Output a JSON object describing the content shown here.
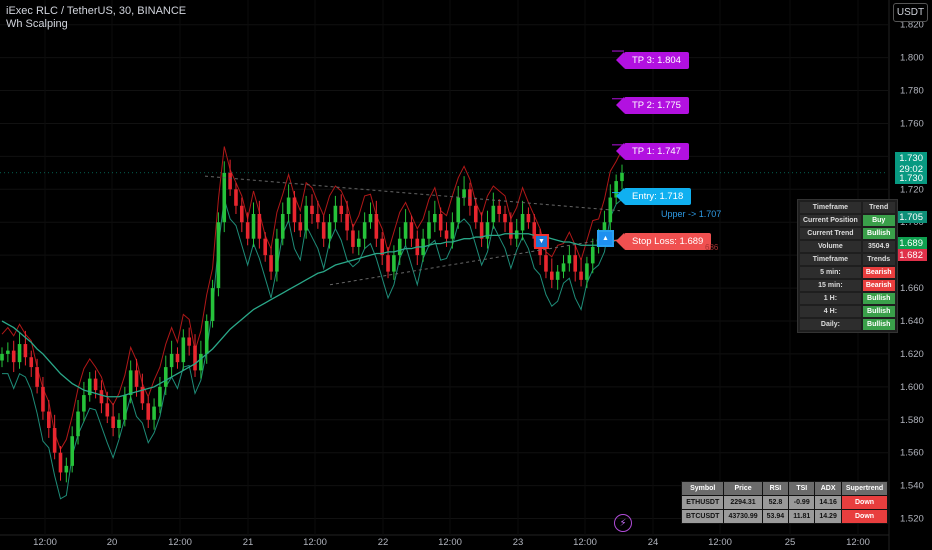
{
  "header": {
    "symbol_line": "iExec RLC / TetherUS, 30, BINANCE",
    "indicator_name": "Wh Scalping"
  },
  "currency_button": "USDT",
  "price_axis": {
    "min": 1.51,
    "max": 1.835,
    "ticks": [
      "1.820",
      "1.800",
      "1.780",
      "1.760",
      "1.740",
      "1.720",
      "1.700",
      "1.680",
      "1.660",
      "1.640",
      "1.620",
      "1.600",
      "1.580",
      "1.560",
      "1.540",
      "1.520"
    ],
    "tick_values": [
      1.82,
      1.8,
      1.78,
      1.76,
      1.74,
      1.72,
      1.7,
      1.68,
      1.66,
      1.64,
      1.62,
      1.6,
      1.58,
      1.56,
      1.54,
      1.52
    ]
  },
  "time_axis": {
    "labels": [
      "12:00",
      "20",
      "12:00",
      "21",
      "12:00",
      "22",
      "12:00",
      "23",
      "12:00",
      "24",
      "12:00",
      "25",
      "12:00"
    ]
  },
  "price_labels": {
    "last_price": "1.730",
    "countdown": "29:02",
    "last_price_2": "1.730",
    "upper": "1.705",
    "green_level": "1.689",
    "red_level": "1.682"
  },
  "trade_levels": {
    "tp3": "TP 3: 1.804",
    "tp2": "TP 2: 1.775",
    "tp1": "TP 1: 1.747",
    "entry": "Entry: 1.718",
    "upper_text": "Upper -> 1.707",
    "stop_loss": "Stop Loss: 1.689",
    "stop_loss_faded": "686"
  },
  "trend_panel": {
    "rows": [
      {
        "label": "Timeframe",
        "value": "Trend",
        "style": "d"
      },
      {
        "label": "Current Position",
        "value": "Buy",
        "style": "g"
      },
      {
        "label": "Current Trend",
        "value": "Bullish",
        "style": "g"
      },
      {
        "label": "Volume",
        "value": "3504.9",
        "style": "d"
      },
      {
        "label": "Timeframe",
        "value": "Trends",
        "style": "d"
      },
      {
        "label": "5 min:",
        "value": "Bearish",
        "style": "r"
      },
      {
        "label": "15 min:",
        "value": "Bearish",
        "style": "r"
      },
      {
        "label": "1 H:",
        "value": "Bullish",
        "style": "g"
      },
      {
        "label": "4 H:",
        "value": "Bullish",
        "style": "g"
      },
      {
        "label": "Daily:",
        "value": "Bullish",
        "style": "g"
      }
    ]
  },
  "market_table": {
    "headers": [
      "Symbol",
      "Price",
      "RSI",
      "TSI",
      "ADX",
      "Supertrend"
    ],
    "rows": [
      [
        "ETHUSDT",
        "2294.31",
        "52.8",
        "-0.99",
        "14.16",
        "Down"
      ],
      [
        "BTCUSDT",
        "43730.99",
        "53.94",
        "11.81",
        "14.29",
        "Down"
      ]
    ]
  },
  "colors": {
    "background": "#000000",
    "bull": "#26c23a",
    "bear": "#e8262f",
    "ema": "#2aa889",
    "tp": "#b211e0",
    "entry": "#10b0f0",
    "stop": "#f05050"
  },
  "chart_data": {
    "type": "candlestick",
    "series": [
      {
        "name": "price",
        "values": [
          1.62,
          1.622,
          1.615,
          1.626,
          1.618,
          1.612,
          1.6,
          1.585,
          1.575,
          1.56,
          1.548,
          1.552,
          1.57,
          1.585,
          1.595,
          1.605,
          1.598,
          1.59,
          1.582,
          1.575,
          1.58,
          1.595,
          1.61,
          1.6,
          1.59,
          1.58,
          1.588,
          1.6,
          1.612,
          1.62,
          1.615,
          1.63,
          1.625,
          1.61,
          1.62,
          1.64,
          1.66,
          1.7,
          1.73,
          1.72,
          1.71,
          1.7,
          1.69,
          1.705,
          1.69,
          1.68,
          1.67,
          1.69,
          1.705,
          1.715,
          1.7,
          1.695,
          1.71,
          1.705,
          1.7,
          1.69,
          1.7,
          1.71,
          1.705,
          1.695,
          1.685,
          1.69,
          1.7,
          1.705,
          1.69,
          1.68,
          1.67,
          1.68,
          1.69,
          1.7,
          1.69,
          1.68,
          1.69,
          1.7,
          1.705,
          1.695,
          1.69,
          1.7,
          1.715,
          1.72,
          1.71,
          1.7,
          1.69,
          1.7,
          1.71,
          1.705,
          1.7,
          1.69,
          1.695,
          1.705,
          1.7,
          1.69,
          1.68,
          1.67,
          1.665,
          1.67,
          1.675,
          1.68,
          1.67,
          1.665,
          1.675,
          1.685,
          1.69,
          1.7,
          1.715,
          1.725,
          1.73
        ]
      },
      {
        "name": "ema",
        "values": [
          1.64,
          1.638,
          1.636,
          1.633,
          1.63,
          1.627,
          1.623,
          1.62,
          1.616,
          1.612,
          1.608,
          1.605,
          1.602,
          1.6,
          1.598,
          1.597,
          1.596,
          1.595,
          1.594,
          1.594,
          1.594,
          1.595,
          1.596,
          1.597,
          1.598,
          1.599,
          1.6,
          1.602,
          1.604,
          1.606,
          1.608,
          1.61,
          1.612,
          1.614,
          1.617,
          1.62,
          1.623,
          1.627,
          1.631,
          1.635,
          1.638,
          1.641,
          1.644,
          1.647,
          1.649,
          1.651,
          1.653,
          1.655,
          1.657,
          1.659,
          1.661,
          1.663,
          1.665,
          1.667,
          1.669,
          1.67,
          1.672,
          1.674,
          1.675,
          1.676,
          1.677,
          1.678,
          1.679,
          1.68,
          1.681,
          1.681,
          1.682,
          1.682,
          1.683,
          1.684,
          1.684,
          1.685,
          1.685,
          1.686,
          1.687,
          1.687,
          1.688,
          1.688,
          1.689,
          1.69,
          1.69,
          1.691,
          1.691,
          1.692,
          1.692,
          1.692,
          1.693,
          1.693,
          1.693,
          1.693,
          1.693,
          1.692,
          1.692,
          1.691,
          1.69,
          1.689,
          1.688,
          1.688,
          1.687,
          1.686,
          1.686,
          1.686,
          1.686,
          1.687,
          1.688,
          1.689,
          1.69
        ]
      }
    ]
  }
}
